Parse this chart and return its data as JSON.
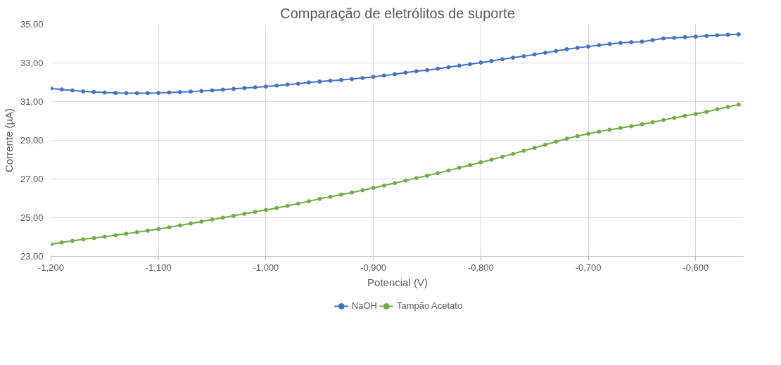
{
  "chart_data": {
    "type": "line",
    "title": "Comparação de eletrólitos de suporte",
    "xlabel": "Potencial (V)",
    "ylabel": "Corrente (µA)",
    "x": [
      -1.2,
      -1.19,
      -1.18,
      -1.17,
      -1.16,
      -1.15,
      -1.14,
      -1.13,
      -1.12,
      -1.11,
      -1.1,
      -1.09,
      -1.08,
      -1.07,
      -1.06,
      -1.05,
      -1.04,
      -1.03,
      -1.02,
      -1.01,
      -1.0,
      -0.99,
      -0.98,
      -0.97,
      -0.96,
      -0.95,
      -0.94,
      -0.93,
      -0.92,
      -0.91,
      -0.9,
      -0.89,
      -0.88,
      -0.87,
      -0.86,
      -0.85,
      -0.84,
      -0.83,
      -0.82,
      -0.81,
      -0.8,
      -0.79,
      -0.78,
      -0.77,
      -0.76,
      -0.75,
      -0.74,
      -0.73,
      -0.72,
      -0.71,
      -0.7,
      -0.69,
      -0.68,
      -0.67,
      -0.66,
      -0.65,
      -0.64,
      -0.63,
      -0.62,
      -0.61,
      -0.6,
      -0.59,
      -0.58,
      -0.57,
      -0.56
    ],
    "series": [
      {
        "name": "NaOH",
        "color": "#4472c4",
        "values": [
          31.68,
          31.63,
          31.58,
          31.53,
          31.5,
          31.47,
          31.45,
          31.44,
          31.44,
          31.44,
          31.45,
          31.47,
          31.49,
          31.52,
          31.55,
          31.58,
          31.62,
          31.66,
          31.7,
          31.74,
          31.78,
          31.83,
          31.88,
          31.93,
          31.99,
          32.04,
          32.08,
          32.12,
          32.17,
          32.22,
          32.28,
          32.35,
          32.42,
          32.5,
          32.57,
          32.63,
          32.7,
          32.78,
          32.86,
          32.94,
          33.02,
          33.1,
          33.19,
          33.27,
          33.35,
          33.44,
          33.53,
          33.62,
          33.71,
          33.78,
          33.85,
          33.92,
          33.98,
          34.04,
          34.07,
          34.1,
          34.18,
          34.27,
          34.3,
          34.33,
          34.36,
          34.4,
          34.43,
          34.46,
          34.48
        ]
      },
      {
        "name": "Tampão Acetato",
        "color": "#70ad47",
        "values": [
          23.62,
          23.72,
          23.8,
          23.88,
          23.95,
          24.02,
          24.09,
          24.17,
          24.25,
          24.33,
          24.41,
          24.5,
          24.6,
          24.7,
          24.8,
          24.9,
          25.0,
          25.1,
          25.2,
          25.3,
          25.4,
          25.5,
          25.61,
          25.73,
          25.85,
          25.97,
          26.08,
          26.19,
          26.3,
          26.42,
          26.54,
          26.66,
          26.79,
          26.92,
          27.05,
          27.17,
          27.3,
          27.44,
          27.58,
          27.72,
          27.86,
          28.0,
          28.15,
          28.3,
          28.46,
          28.61,
          28.77,
          28.93,
          29.08,
          29.22,
          29.34,
          29.45,
          29.55,
          29.64,
          29.73,
          29.83,
          29.94,
          30.05,
          30.16,
          30.26,
          30.36,
          30.47,
          30.6,
          30.73,
          30.85
        ]
      }
    ],
    "xlim": [
      -1.2,
      -0.555
    ],
    "ylim": [
      23,
      35
    ],
    "xticks": [
      {
        "value": -1.2,
        "label": "-1,200"
      },
      {
        "value": -1.1,
        "label": "-1,100"
      },
      {
        "value": -1.0,
        "label": "-1,000"
      },
      {
        "value": -0.9,
        "label": "-0,900"
      },
      {
        "value": -0.8,
        "label": "-0,800"
      },
      {
        "value": -0.7,
        "label": "-0,700"
      },
      {
        "value": -0.6,
        "label": "-0,600"
      }
    ],
    "yticks": [
      {
        "value": 23,
        "label": "23,00"
      },
      {
        "value": 25,
        "label": "25,00"
      },
      {
        "value": 27,
        "label": "27,00"
      },
      {
        "value": 29,
        "label": "29,00"
      },
      {
        "value": 31,
        "label": "31,00"
      },
      {
        "value": 33,
        "label": "33,00"
      },
      {
        "value": 35,
        "label": "35,00"
      }
    ],
    "grid": true,
    "legend": "bottom",
    "marker": "circle",
    "line_style": "solid"
  }
}
